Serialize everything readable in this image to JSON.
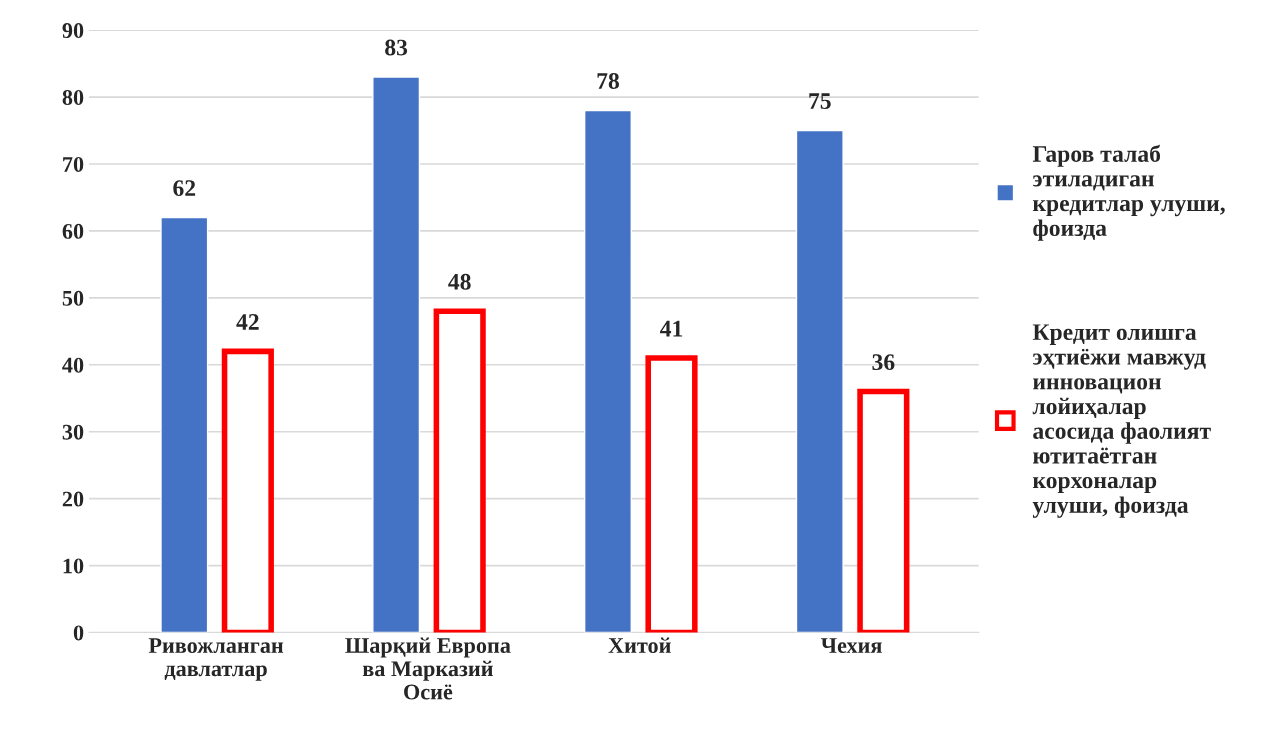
{
  "chart_data": {
    "type": "bar",
    "categories": [
      "Ривожланган\nдавлатлар",
      "Шарқий Европа\nва Марказий\nОсиё",
      "Хитой",
      "Чехия"
    ],
    "series": [
      {
        "name": "Гаров талаб\nэтиладиган\nкредитлар улуши,\nфоизда",
        "color": "#4472c4",
        "values": [
          62,
          83,
          78,
          75
        ]
      },
      {
        "name": "Кредит олишга\nэҳтиёжи мавжуд\nинновацион\nлойиҳалар\nасосида фаолият\nютитаётган\nкорхоналар\nулуши, фоизда",
        "color": "#ff0000",
        "values": [
          42,
          48,
          41,
          36
        ]
      }
    ],
    "ylim": [
      0,
      90
    ],
    "yticks": [
      0,
      10,
      20,
      30,
      40,
      50,
      60,
      70,
      80,
      90
    ],
    "grid": "y",
    "legend": "right",
    "data_labels": true
  }
}
